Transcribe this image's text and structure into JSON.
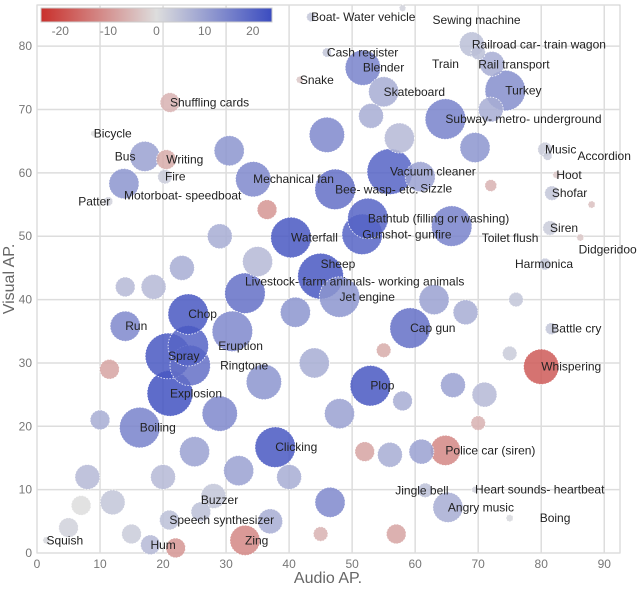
{
  "chart_data": {
    "type": "scatter",
    "title": "",
    "xlabel": "Audio AP.",
    "ylabel": "Visual AP.",
    "xlim": [
      0,
      92.5
    ],
    "ylim": [
      0,
      86.5
    ],
    "xticks": [
      0,
      10,
      20,
      30,
      40,
      50,
      60,
      70,
      80,
      90
    ],
    "yticks": [
      0,
      10,
      20,
      30,
      40,
      50,
      60,
      70,
      80
    ],
    "grid": true,
    "marker_size_encodes": "relative bubble size (unlabeled)",
    "colorbar": {
      "placement": "top-left",
      "range": [
        -24,
        24
      ],
      "ticks": [
        -20,
        -10,
        0,
        10,
        20
      ],
      "colors": {
        "low": "#c9302c",
        "mid": "#dddddd",
        "high": "#3b4cc0"
      }
    },
    "points": [
      {
        "label": "Boat- Water vehicle",
        "x": 43.5,
        "y": 84.6,
        "value": 4,
        "size": 1
      },
      {
        "label": "Sewing machine",
        "x": 58,
        "y": 86,
        "value": 2,
        "size": 0.5
      },
      {
        "label": "Cash register",
        "x": 46,
        "y": 79,
        "value": 4,
        "size": 1
      },
      {
        "label": "Snake",
        "x": 41.7,
        "y": 74.7,
        "value": -3,
        "size": 0.6
      },
      {
        "label": "Blender",
        "x": 51.7,
        "y": 76.6,
        "value": 15,
        "size": 6
      },
      {
        "label": "Skateboard",
        "x": 55,
        "y": 72.8,
        "value": 8,
        "size": 5
      },
      {
        "label": "Subway- metro- underground",
        "x": 64.8,
        "y": 68.5,
        "value": 15,
        "size": 7
      },
      {
        "label": "Railroad car- train wagon",
        "x": 69,
        "y": 80.3,
        "value": 5,
        "size": 4
      },
      {
        "label": "Rail transport",
        "x": 70,
        "y": 79,
        "value": 5,
        "size": 2
      },
      {
        "label": "Train",
        "x": 72.2,
        "y": 77.2,
        "value": 8,
        "size": 4
      },
      {
        "label": "Turkey",
        "x": 74.3,
        "y": 73,
        "value": 13,
        "size": 7
      },
      {
        "label": "Music",
        "x": 80.6,
        "y": 63.7,
        "value": 3,
        "size": 2
      },
      {
        "label": "Accordion",
        "x": 81,
        "y": 62.7,
        "value": 3,
        "size": 1
      },
      {
        "label": "Hoot",
        "x": 82.4,
        "y": 59.7,
        "value": -3,
        "size": 0.6
      },
      {
        "label": "Shofar",
        "x": 81.7,
        "y": 56.8,
        "value": 4,
        "size": 2
      },
      {
        "label": "Siren",
        "x": 81.4,
        "y": 51.3,
        "value": 3,
        "size": 2
      },
      {
        "label": "Didgeridoo",
        "x": 86.2,
        "y": 49.8,
        "value": -3,
        "size": 0.6
      },
      {
        "label": "Harmonica",
        "x": 80.6,
        "y": 45.6,
        "value": 4,
        "size": 1.5
      },
      {
        "label": "Battle cry",
        "x": 81.6,
        "y": 35.4,
        "value": 4,
        "size": 1.5
      },
      {
        "label": "Whispering",
        "x": 80,
        "y": 29.4,
        "value": -18,
        "size": 6
      },
      {
        "label": "Police car (siren)",
        "x": 64.8,
        "y": 16.2,
        "value": -12,
        "size": 5
      },
      {
        "label": "Heart sounds- heartbeat",
        "x": 69.5,
        "y": 10,
        "value": 2,
        "size": 0.5
      },
      {
        "label": "Jingle bell",
        "x": 61.6,
        "y": 9.9,
        "value": 5,
        "size": 2
      },
      {
        "label": "Angry music",
        "x": 65.2,
        "y": 7.2,
        "value": 8,
        "size": 5
      },
      {
        "label": "Boing",
        "x": 75,
        "y": 5.5,
        "value": 1,
        "size": 0.6
      },
      {
        "label": "Plop",
        "x": 52.9,
        "y": 26.4,
        "value": 22,
        "size": 7
      },
      {
        "label": "Cap gun",
        "x": 59.2,
        "y": 35.5,
        "value": 18,
        "size": 7
      },
      {
        "label": "Clicking",
        "x": 37.8,
        "y": 16.7,
        "value": 22,
        "size": 7
      },
      {
        "label": "Boiling",
        "x": 16.3,
        "y": 19.8,
        "value": 15,
        "size": 7
      },
      {
        "label": "Explosion",
        "x": 21.1,
        "y": 25.2,
        "value": 23,
        "size": 8
      },
      {
        "label": "Spray",
        "x": 20.8,
        "y": 31.1,
        "value": 22,
        "size": 8
      },
      {
        "label": "Ringtone",
        "x": 24.3,
        "y": 29.6,
        "value": 18,
        "size": 7
      },
      {
        "label": "Eruption",
        "x": 24,
        "y": 32.7,
        "value": 20,
        "size": 7
      },
      {
        "label": "Chop",
        "x": 24,
        "y": 37.7,
        "value": 22,
        "size": 7
      },
      {
        "label": "Run",
        "x": 14,
        "y": 35.8,
        "value": 14,
        "size": 5
      },
      {
        "label": "Squish",
        "x": 1.5,
        "y": 2,
        "value": 1,
        "size": 0.6
      },
      {
        "label": "Hum",
        "x": 18,
        "y": 1.3,
        "value": 6,
        "size": 3
      },
      {
        "label": "Speech synthesizer",
        "x": 21,
        "y": 5.2,
        "value": 5,
        "size": 3
      },
      {
        "label": "Buzzer",
        "x": 26,
        "y": 6.5,
        "value": 5,
        "size": 3
      },
      {
        "label": "Zing",
        "x": 33,
        "y": 2,
        "value": -12,
        "size": 5
      },
      {
        "label": "Jet engine",
        "x": 48,
        "y": 40.4,
        "value": 12,
        "size": 7
      },
      {
        "label": "Livestock- farm animals- working animals",
        "x": 33,
        "y": 41,
        "value": 18,
        "size": 7
      },
      {
        "label": "Sheep",
        "x": 45,
        "y": 43.7,
        "value": 22,
        "size": 8
      },
      {
        "label": "Waterfall",
        "x": 40.3,
        "y": 49.8,
        "value": 22,
        "size": 7
      },
      {
        "label": "Gunshot- gunfire",
        "x": 51.6,
        "y": 50.3,
        "value": 20,
        "size": 7
      },
      {
        "label": "Bathtub (filling or washing)",
        "x": 52.5,
        "y": 52.8,
        "value": 20,
        "size": 7
      },
      {
        "label": "Toilet flush",
        "x": 65.8,
        "y": 51.6,
        "value": 15,
        "size": 7
      },
      {
        "label": "Bee- wasp- etc.",
        "x": 47.3,
        "y": 57.4,
        "value": 18,
        "size": 7
      },
      {
        "label": "Vacuum cleaner",
        "x": 56,
        "y": 60.2,
        "value": 20,
        "size": 8
      },
      {
        "label": "Sizzle",
        "x": 60.8,
        "y": 59.4,
        "value": 10,
        "size": 5
      },
      {
        "label": "Shuffling cards",
        "x": 21.1,
        "y": 71.1,
        "value": -6,
        "size": 3
      },
      {
        "label": "Bicycle",
        "x": 9,
        "y": 66.2,
        "value": 0,
        "size": 0.4
      },
      {
        "label": "Writing",
        "x": 20.5,
        "y": 62.1,
        "value": -7,
        "size": 3
      },
      {
        "label": "Bus",
        "x": 17.1,
        "y": 62.6,
        "value": 10,
        "size": 5
      },
      {
        "label": "Fire",
        "x": 20.3,
        "y": 59.4,
        "value": 3,
        "size": 2
      },
      {
        "label": "Mechanical fan",
        "x": 34.3,
        "y": 59,
        "value": 14,
        "size": 6
      },
      {
        "label": "Motorboat- speedboat",
        "x": 13.8,
        "y": 58.3,
        "value": 12,
        "size": 5
      },
      {
        "label": "Patter",
        "x": 11.3,
        "y": 55.5,
        "value": 2,
        "size": 1
      },
      {
        "label": "",
        "x": 36.5,
        "y": 54.2,
        "value": -10,
        "size": 3
      },
      {
        "label": "",
        "x": 53,
        "y": 69,
        "value": 8,
        "size": 4
      },
      {
        "label": "",
        "x": 30.5,
        "y": 63.5,
        "value": 12,
        "size": 5
      },
      {
        "label": "",
        "x": 46,
        "y": 66,
        "value": 14,
        "size": 6
      },
      {
        "label": "",
        "x": 57.5,
        "y": 65.5,
        "value": 6,
        "size": 5
      },
      {
        "label": "",
        "x": 69.5,
        "y": 64,
        "value": 12,
        "size": 5
      },
      {
        "label": "",
        "x": 72,
        "y": 70,
        "value": 8,
        "size": 4
      },
      {
        "label": "",
        "x": 35,
        "y": 46,
        "value": 6,
        "size": 5
      },
      {
        "label": "",
        "x": 29,
        "y": 50,
        "value": 8,
        "size": 4
      },
      {
        "label": "",
        "x": 23,
        "y": 45,
        "value": 8,
        "size": 4
      },
      {
        "label": "",
        "x": 18.5,
        "y": 42,
        "value": 6,
        "size": 4
      },
      {
        "label": "",
        "x": 41,
        "y": 38,
        "value": 12,
        "size": 5
      },
      {
        "label": "",
        "x": 31,
        "y": 35,
        "value": 14,
        "size": 7
      },
      {
        "label": "",
        "x": 36,
        "y": 27,
        "value": 12,
        "size": 6
      },
      {
        "label": "",
        "x": 29,
        "y": 22,
        "value": 14,
        "size": 6
      },
      {
        "label": "",
        "x": 44,
        "y": 30,
        "value": 8,
        "size": 5
      },
      {
        "label": "",
        "x": 48,
        "y": 22,
        "value": 10,
        "size": 5
      },
      {
        "label": "",
        "x": 46.5,
        "y": 8,
        "value": 14,
        "size": 5
      },
      {
        "label": "",
        "x": 40,
        "y": 12,
        "value": 8,
        "size": 4
      },
      {
        "label": "",
        "x": 32,
        "y": 13,
        "value": 10,
        "size": 5
      },
      {
        "label": "",
        "x": 25,
        "y": 16,
        "value": 10,
        "size": 5
      },
      {
        "label": "",
        "x": 12,
        "y": 8,
        "value": 4,
        "size": 4
      },
      {
        "label": "",
        "x": 8,
        "y": 12,
        "value": 6,
        "size": 4
      },
      {
        "label": "",
        "x": 5,
        "y": 4,
        "value": 2,
        "size": 3
      },
      {
        "label": "",
        "x": 15,
        "y": 3,
        "value": 3,
        "size": 3
      },
      {
        "label": "",
        "x": 28,
        "y": 9,
        "value": 4,
        "size": 4
      },
      {
        "label": "",
        "x": 37,
        "y": 5,
        "value": 8,
        "size": 4
      },
      {
        "label": "",
        "x": 11.5,
        "y": 29,
        "value": -8,
        "size": 3
      },
      {
        "label": "",
        "x": 57,
        "y": 3,
        "value": -8,
        "size": 3
      },
      {
        "label": "",
        "x": 52,
        "y": 16,
        "value": -8,
        "size": 3
      },
      {
        "label": "",
        "x": 58,
        "y": 24,
        "value": 8,
        "size": 3
      },
      {
        "label": "",
        "x": 66,
        "y": 26.5,
        "value": 10,
        "size": 4
      },
      {
        "label": "",
        "x": 71,
        "y": 25,
        "value": 6,
        "size": 4
      },
      {
        "label": "",
        "x": 56,
        "y": 15.5,
        "value": 8,
        "size": 4
      },
      {
        "label": "",
        "x": 61,
        "y": 16,
        "value": 10,
        "size": 4
      },
      {
        "label": "",
        "x": 70,
        "y": 20.5,
        "value": -6,
        "size": 2
      },
      {
        "label": "",
        "x": 55,
        "y": 32,
        "value": -7,
        "size": 2
      },
      {
        "label": "",
        "x": 75,
        "y": 31.5,
        "value": 3,
        "size": 2
      },
      {
        "label": "",
        "x": 76,
        "y": 40,
        "value": 4,
        "size": 2
      },
      {
        "label": "",
        "x": 63,
        "y": 40,
        "value": 10,
        "size": 5
      },
      {
        "label": "",
        "x": 68,
        "y": 38,
        "value": 8,
        "size": 4
      },
      {
        "label": "",
        "x": 72,
        "y": 58,
        "value": -6,
        "size": 1.5
      },
      {
        "label": "",
        "x": 88,
        "y": 55,
        "value": -4,
        "size": 0.6
      },
      {
        "label": "",
        "x": 14,
        "y": 42,
        "value": 6,
        "size": 3
      },
      {
        "label": "",
        "x": 10,
        "y": 21,
        "value": 8,
        "size": 3
      },
      {
        "label": "",
        "x": 7,
        "y": 7.5,
        "value": 0,
        "size": 3
      },
      {
        "label": "",
        "x": 20,
        "y": 12,
        "value": 6,
        "size": 4
      },
      {
        "label": "",
        "x": 45,
        "y": 3,
        "value": -6,
        "size": 2
      },
      {
        "label": "",
        "x": 22,
        "y": 0.8,
        "value": -10,
        "size": 3
      }
    ]
  }
}
